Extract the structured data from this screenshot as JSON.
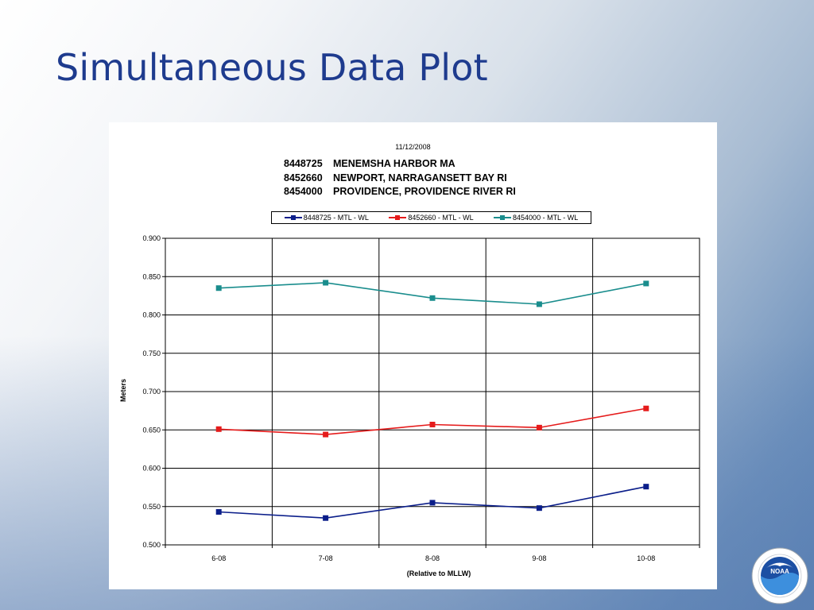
{
  "slide": {
    "title": "Simultaneous Data Plot"
  },
  "chart_header": {
    "date": "11/12/2008",
    "stations": [
      {
        "id": "8448725",
        "name": "MENEMSHA HARBOR MA"
      },
      {
        "id": "8452660",
        "name": "NEWPORT, NARRAGANSETT BAY RI"
      },
      {
        "id": "8454000",
        "name": "PROVIDENCE, PROVIDENCE RIVER RI"
      }
    ]
  },
  "logo": {
    "icon": "noaa-logo-icon",
    "text": "NOAA"
  },
  "chart_data": {
    "type": "line",
    "categories": [
      "6-08",
      "7-08",
      "8-08",
      "9-08",
      "10-08"
    ],
    "ylabel": "Meters",
    "xlabel": "(Relative to MLLW)",
    "ylim": [
      0.5,
      0.9
    ],
    "yticks": [
      "0.900",
      "0.850",
      "0.800",
      "0.750",
      "0.700",
      "0.650",
      "0.600",
      "0.550",
      "0.500"
    ],
    "grid": true,
    "legend_position": "top",
    "series": [
      {
        "name": "8448725 - MTL - WL",
        "color": "#0b1e8a",
        "values": [
          0.543,
          0.535,
          0.555,
          0.548,
          0.576
        ]
      },
      {
        "name": "8452660 - MTL - WL",
        "color": "#e51b1b",
        "values": [
          0.651,
          0.644,
          0.657,
          0.653,
          0.678
        ]
      },
      {
        "name": "8454000 - MTL - WL",
        "color": "#1a8d8d",
        "values": [
          0.835,
          0.842,
          0.822,
          0.814,
          0.841
        ]
      }
    ]
  }
}
